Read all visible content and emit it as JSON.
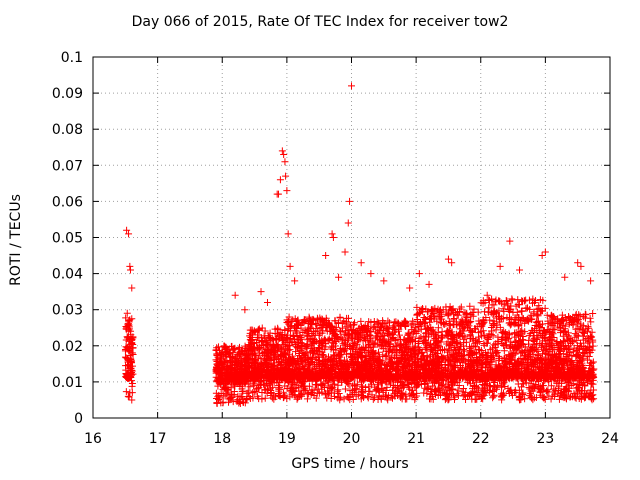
{
  "chart_data": {
    "type": "scatter",
    "title": "Day 066 of 2015, Rate Of TEC Index for receiver tow2",
    "xlabel": "GPS time / hours",
    "ylabel": "ROTI / TECUs",
    "xlim": [
      16,
      24
    ],
    "ylim": [
      0,
      0.1
    ],
    "xticks": [
      "16",
      "17",
      "18",
      "19",
      "20",
      "21",
      "22",
      "23",
      "24"
    ],
    "yticks": [
      "0",
      "0.01",
      "0.02",
      "0.03",
      "0.04",
      "0.05",
      "0.06",
      "0.07",
      "0.08",
      "0.09",
      "0.1"
    ],
    "grid": true,
    "marker": "+",
    "series_color": "#ff0000",
    "series": [
      {
        "name": "tow2",
        "x": [
          16.52,
          16.55,
          16.57,
          16.58,
          16.6,
          16.53,
          16.56,
          16.59,
          16.61,
          16.54,
          16.57,
          16.6,
          18.85,
          18.9,
          18.93,
          18.95,
          18.97,
          18.98,
          19.0,
          18.87,
          19.02,
          19.05,
          19.12,
          19.7,
          19.72,
          19.9,
          19.95,
          20.0,
          19.97,
          19.6,
          19.8,
          20.15,
          20.3,
          21.05,
          21.5,
          21.55,
          22.3,
          22.45,
          22.6,
          22.95,
          23.0,
          23.5,
          23.55,
          23.7,
          18.2,
          18.35,
          18.6,
          18.7,
          20.5,
          20.9,
          21.2,
          22.1,
          23.3
        ],
        "y": [
          0.052,
          0.051,
          0.042,
          0.041,
          0.036,
          0.029,
          0.027,
          0.022,
          0.018,
          0.012,
          0.007,
          0.005,
          0.062,
          0.066,
          0.074,
          0.073,
          0.071,
          0.067,
          0.063,
          0.062,
          0.051,
          0.042,
          0.038,
          0.051,
          0.05,
          0.046,
          0.054,
          0.092,
          0.06,
          0.045,
          0.039,
          0.043,
          0.04,
          0.04,
          0.044,
          0.043,
          0.042,
          0.049,
          0.041,
          0.045,
          0.046,
          0.043,
          0.042,
          0.038,
          0.034,
          0.03,
          0.035,
          0.032,
          0.038,
          0.036,
          0.037,
          0.034,
          0.039
        ]
      }
    ],
    "density_bands": [
      {
        "x_start": 16.5,
        "x_end": 16.62,
        "y_min": 0.005,
        "y_max": 0.028
      },
      {
        "x_start": 17.9,
        "x_end": 18.4,
        "y_min": 0.004,
        "y_max": 0.02
      },
      {
        "x_start": 18.4,
        "x_end": 19.0,
        "y_min": 0.005,
        "y_max": 0.025
      },
      {
        "x_start": 19.0,
        "x_end": 20.0,
        "y_min": 0.005,
        "y_max": 0.028
      },
      {
        "x_start": 20.0,
        "x_end": 21.0,
        "y_min": 0.005,
        "y_max": 0.027
      },
      {
        "x_start": 21.0,
        "x_end": 22.0,
        "y_min": 0.005,
        "y_max": 0.031
      },
      {
        "x_start": 22.0,
        "x_end": 23.0,
        "y_min": 0.005,
        "y_max": 0.033
      },
      {
        "x_start": 23.0,
        "x_end": 23.75,
        "y_min": 0.005,
        "y_max": 0.029
      }
    ]
  }
}
